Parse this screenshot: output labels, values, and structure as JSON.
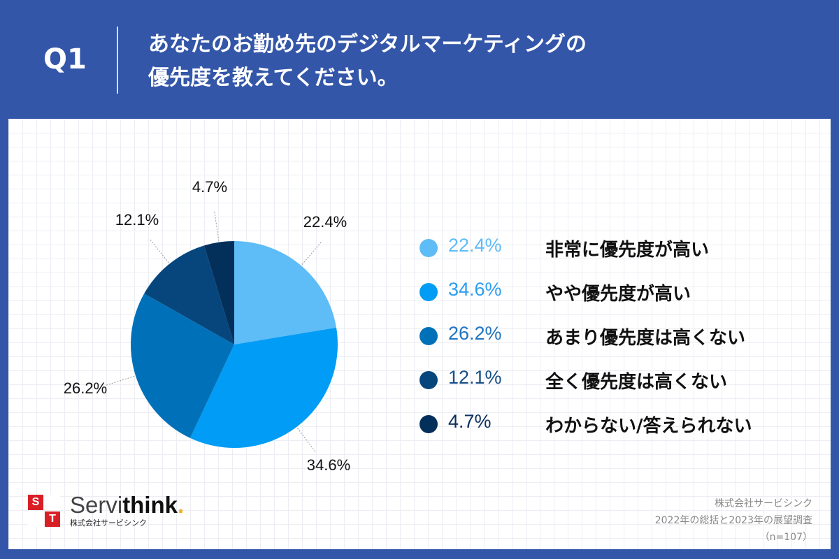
{
  "header": {
    "question_number": "Q1",
    "question_line1": "あなたのお勤め先のデジタルマーケティングの",
    "question_line2": "優先度を教えてください。"
  },
  "chart_data": {
    "type": "pie",
    "slices": [
      {
        "label": "非常に優先度が高い",
        "value": 22.4,
        "display": "22.4%",
        "color": "#5ebcf7",
        "text_color": "#5ebcf7"
      },
      {
        "label": "やや優先度が高い",
        "value": 34.6,
        "display": "34.6%",
        "color": "#019cf5",
        "text_color": "#2c9ef0"
      },
      {
        "label": "あまり優先度は高くない",
        "value": 26.2,
        "display": "26.2%",
        "color": "#0071b9",
        "text_color": "#1f74c1"
      },
      {
        "label": "全く優先度は高くない",
        "value": 12.1,
        "display": "12.1%",
        "color": "#07467d",
        "text_color": "#164d86"
      },
      {
        "label": "わからない/答えられない",
        "value": 4.7,
        "display": "4.7%",
        "color": "#032f5b",
        "text_color": "#0c2f5e"
      }
    ]
  },
  "logo": {
    "letters": [
      "S",
      "T"
    ],
    "name_part1": "Servi",
    "name_part2": "think",
    "name_dot": ".",
    "subtitle": "株式会社サービシンク"
  },
  "source": {
    "line1": "株式会社サービシンク",
    "line2": "2022年の総括と2023年の展望調査",
    "line3": "（n=107）"
  }
}
